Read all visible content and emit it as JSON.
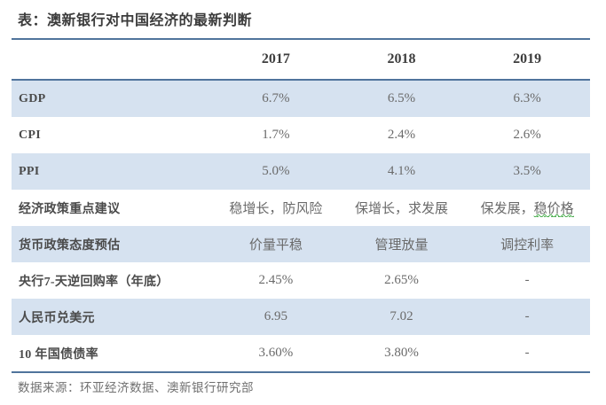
{
  "page": {
    "title": "表：澳新银行对中国经济的最新判断",
    "source": "数据来源：环亚经济数据、澳新银行研究部"
  },
  "table": {
    "columns": [
      "2017",
      "2018",
      "2019"
    ],
    "rows": [
      {
        "label": "GDP",
        "values": [
          "6.7%",
          "6.5%",
          "6.3%"
        ]
      },
      {
        "label": "CPI",
        "values": [
          "1.7%",
          "2.4%",
          "2.6%"
        ]
      },
      {
        "label": "PPI",
        "values": [
          "5.0%",
          "4.1%",
          "3.5%"
        ]
      },
      {
        "label": "经济政策重点建议",
        "values": [
          "稳增长，防风险",
          "保增长，求发展",
          "保发展，稳价格"
        ],
        "marked": "稳价格"
      },
      {
        "label": "货币政策态度预估",
        "values": [
          "价量平稳",
          "管理放量",
          "调控利率"
        ]
      },
      {
        "label": "央行7-天逆回购率（年底）",
        "values": [
          "2.45%",
          "2.65%",
          "-"
        ]
      },
      {
        "label": "人民币兑美元",
        "values": [
          "6.95",
          "7.02",
          "-"
        ]
      },
      {
        "label": "10 年国债债率",
        "values": [
          "3.60%",
          "3.80%",
          "-"
        ]
      }
    ]
  },
  "colors": {
    "accent_line": "#50749c",
    "row_alt_bg": "#d6e2f0",
    "spellcheck_mark": "#4caf50"
  }
}
